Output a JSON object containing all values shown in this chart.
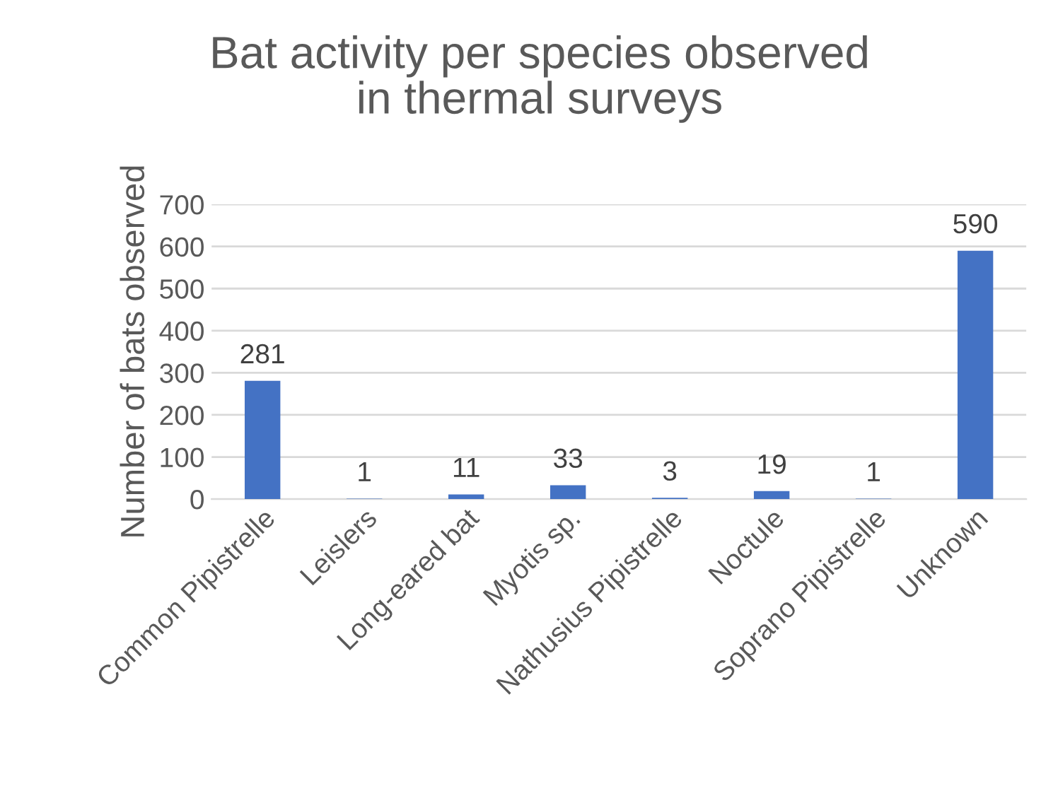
{
  "chart_data": {
    "type": "bar",
    "title": "Bat activity per species observed\nin thermal surveys",
    "ylabel": "Number of bats observed",
    "categories": [
      "Common Pipistrelle",
      "Leislers",
      "Long-eared bat",
      "Myotis sp.",
      "Nathusius Pipistrelle",
      "Noctule",
      "Soprano Pipistrelle",
      "Unknown"
    ],
    "values": [
      281,
      1,
      11,
      33,
      3,
      19,
      1,
      590
    ],
    "color": "#4472c4",
    "ylim": [
      0,
      700
    ],
    "yticks": [
      0,
      100,
      200,
      300,
      400,
      500,
      600,
      700
    ],
    "grid": "y",
    "data_labels": true
  }
}
